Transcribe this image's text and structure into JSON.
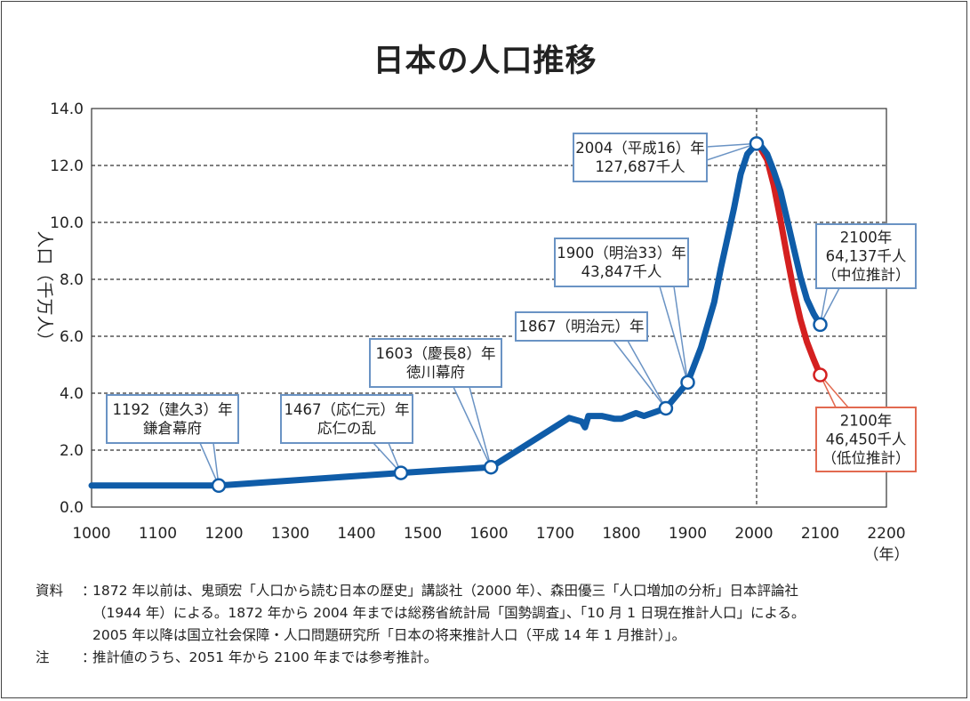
{
  "chart_data": {
    "type": "line",
    "title": "日本の人口推移",
    "ylabel": "人口（千万人）",
    "xlabel": "（年）",
    "xlim": [
      1000,
      2200
    ],
    "ylim": [
      0,
      14
    ],
    "x_ticks": [
      1000,
      1100,
      1200,
      1300,
      1400,
      1500,
      1600,
      1700,
      1800,
      1900,
      2000,
      2100,
      2200
    ],
    "y_ticks": [
      0,
      2,
      4,
      6,
      8,
      10,
      12,
      14
    ],
    "x_tick_labels": [
      "1000",
      "1100",
      "1200",
      "1300",
      "1400",
      "1500",
      "1600",
      "1700",
      "1800",
      "1900",
      "2000",
      "2100",
      "2200"
    ],
    "y_tick_labels": [
      "0.0",
      "2.0",
      "4.0",
      "6.0",
      "8.0",
      "10.0",
      "12.0",
      "14.0"
    ],
    "grid": true,
    "series": [
      {
        "color": "#0f5ca8",
        "x": [
          1000,
          1192,
          1300,
          1467,
          1603,
          1721,
          1740,
          1745,
          1750,
          1770,
          1790,
          1800,
          1822,
          1834,
          1846,
          1867,
          1900,
          1920,
          1940,
          1950,
          1970,
          1980,
          1990,
          2004,
          2010,
          2020,
          2030,
          2040,
          2050,
          2060,
          2070,
          2080,
          2090,
          2100
        ],
        "values": [
          0.757,
          0.757,
          0.93,
          1.2,
          1.4,
          3.13,
          3.0,
          2.8,
          3.2,
          3.2,
          3.1,
          3.1,
          3.3,
          3.2,
          3.3,
          3.47,
          4.38,
          5.6,
          7.2,
          8.4,
          10.5,
          11.7,
          12.4,
          12.77,
          12.7,
          12.4,
          11.8,
          11.1,
          10.1,
          9.1,
          8.1,
          7.3,
          6.8,
          6.41
        ]
      },
      {
        "color": "#d42020",
        "x": [
          2004,
          2010,
          2020,
          2030,
          2040,
          2050,
          2060,
          2070,
          2080,
          2090,
          2100
        ],
        "values": [
          12.77,
          12.6,
          12.2,
          11.3,
          10.1,
          8.8,
          7.6,
          6.6,
          5.8,
          5.2,
          4.64
        ]
      }
    ],
    "reference_line": {
      "x": 2004
    },
    "annotations": [
      {
        "x": 1192,
        "y": 0.757,
        "text": [
          "1192（建久3）年",
          "鎌倉幕府"
        ],
        "style": "blue"
      },
      {
        "x": 1467,
        "y": 1.2,
        "text": [
          "1467（応仁元）年",
          "応仁の乱"
        ],
        "style": "blue"
      },
      {
        "x": 1603,
        "y": 1.4,
        "text": [
          "1603（慶長8）年",
          "徳川幕府"
        ],
        "style": "blue"
      },
      {
        "x": 1867,
        "y": 3.47,
        "text": [
          "1867（明治元）年"
        ],
        "style": "blue"
      },
      {
        "x": 1900,
        "y": 4.38,
        "text": [
          "1900（明治33）年",
          "43,847千人"
        ],
        "style": "blue"
      },
      {
        "x": 2004,
        "y": 12.77,
        "text": [
          "2004（平成16）年",
          "127,687千人"
        ],
        "style": "blue"
      },
      {
        "x": 2100,
        "y": 6.41,
        "text": [
          "2100年",
          "64,137千人",
          "（中位推計）"
        ],
        "style": "blue"
      },
      {
        "x": 2100,
        "y": 4.64,
        "text": [
          "2100年",
          "46,450千人",
          "（低位推計）"
        ],
        "style": "red"
      }
    ]
  },
  "notes": [
    {
      "label": "資料",
      "colon": "：",
      "lines": [
        "1872 年以前は、鬼頭宏「人口から読む日本の歴史」講談社（2000 年）、森田優三「人口増加の分析」日本評論社",
        "（1944 年）による。1872 年から 2004 年までは総務省統計局「国勢調査」、「10 月 1 日現在推計人口」による。",
        "2005 年以降は国立社会保障・人口問題研究所「日本の将来推計人口（平成 14 年 1 月推計）」。"
      ]
    },
    {
      "label": "注",
      "colon": "：",
      "lines": [
        "推計値のうち、2051 年から 2100 年までは参考推計。"
      ]
    }
  ],
  "colors": {
    "blue_line": "#0f5ca8",
    "red_line": "#d42020",
    "blue_box": "#6a93c4",
    "red_box": "#e26a50"
  }
}
